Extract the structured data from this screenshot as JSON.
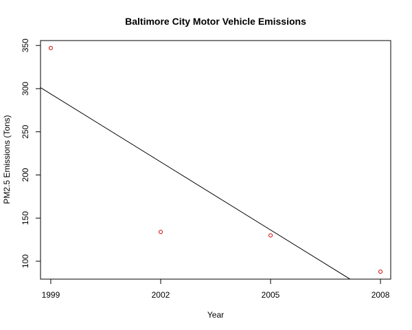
{
  "chart_data": {
    "type": "scatter",
    "title": "Baltimore City Motor Vehicle Emissions",
    "xlabel": "Year",
    "ylabel": "PM2.5 Emissions (Tons)",
    "x": [
      1999,
      2002,
      2005,
      2008
    ],
    "y": [
      347,
      134,
      130,
      88
    ],
    "x_ticks": [
      "1999",
      "2002",
      "2005",
      "2008"
    ],
    "y_ticks": [
      "100",
      "150",
      "200",
      "250",
      "300",
      "350"
    ],
    "xlim": [
      1998.72,
      2008.28
    ],
    "ylim": [
      79.3,
      355.7
    ],
    "trend_line": {
      "x": [
        1998.72,
        2007.17
      ],
      "y": [
        301.2,
        79.3
      ]
    },
    "point_color": "#cc0000",
    "line_color": "#000000",
    "grid": false,
    "legend": "none"
  }
}
